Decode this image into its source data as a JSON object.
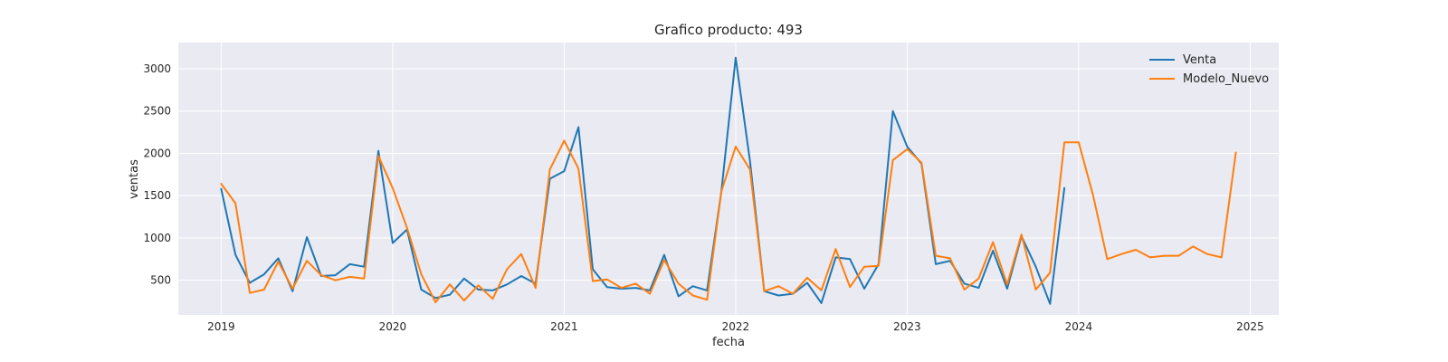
{
  "chart_data": {
    "type": "line",
    "title": "Grafico producto: 493",
    "xlabel": "fecha",
    "ylabel": "ventas",
    "x_ticks": [
      "2019",
      "2020",
      "2021",
      "2022",
      "2023",
      "2024",
      "2025"
    ],
    "y_ticks": [
      500,
      1000,
      1500,
      2000,
      2500,
      3000
    ],
    "xlim": [
      "2018-10-01",
      "2025-03-01"
    ],
    "ylim": [
      90,
      3310
    ],
    "grid": true,
    "background": "#eaeaf2",
    "legend_position": "top-right",
    "series": [
      {
        "name": "Venta",
        "color": "#1f77b4",
        "x": [
          "2019-01",
          "2019-02",
          "2019-03",
          "2019-04",
          "2019-05",
          "2019-06",
          "2019-07",
          "2019-08",
          "2019-09",
          "2019-10",
          "2019-11",
          "2019-12",
          "2020-01",
          "2020-02",
          "2020-03",
          "2020-04",
          "2020-05",
          "2020-06",
          "2020-07",
          "2020-08",
          "2020-09",
          "2020-10",
          "2020-11",
          "2020-12",
          "2021-01",
          "2021-02",
          "2021-03",
          "2021-04",
          "2021-05",
          "2021-06",
          "2021-07",
          "2021-08",
          "2021-09",
          "2021-10",
          "2021-11",
          "2021-12",
          "2022-01",
          "2022-02",
          "2022-03",
          "2022-04",
          "2022-05",
          "2022-06",
          "2022-07",
          "2022-08",
          "2022-09",
          "2022-10",
          "2022-11",
          "2022-12",
          "2023-01",
          "2023-02",
          "2023-03",
          "2023-04",
          "2023-05",
          "2023-06",
          "2023-07",
          "2023-08",
          "2023-09",
          "2023-10",
          "2023-11",
          "2023-12"
        ],
        "y": [
          1580,
          800,
          470,
          570,
          760,
          370,
          1010,
          550,
          560,
          690,
          660,
          2030,
          940,
          1100,
          390,
          290,
          330,
          520,
          390,
          380,
          450,
          550,
          460,
          1700,
          1790,
          2310,
          630,
          420,
          400,
          410,
          380,
          800,
          310,
          430,
          380,
          1550,
          3130,
          1910,
          370,
          320,
          340,
          470,
          230,
          770,
          750,
          400,
          690,
          2500,
          2080,
          1880,
          690,
          730,
          460,
          410,
          850,
          400,
          1020,
          660,
          220,
          1590
        ]
      },
      {
        "name": "Modelo_Nuevo",
        "color": "#ff7f0e",
        "x": [
          "2019-01",
          "2019-02",
          "2019-03",
          "2019-04",
          "2019-05",
          "2019-06",
          "2019-07",
          "2019-08",
          "2019-09",
          "2019-10",
          "2019-11",
          "2019-12",
          "2020-01",
          "2020-02",
          "2020-03",
          "2020-04",
          "2020-05",
          "2020-06",
          "2020-07",
          "2020-08",
          "2020-09",
          "2020-10",
          "2020-11",
          "2020-12",
          "2021-01",
          "2021-02",
          "2021-03",
          "2021-04",
          "2021-05",
          "2021-06",
          "2021-07",
          "2021-08",
          "2021-09",
          "2021-10",
          "2021-11",
          "2021-12",
          "2022-01",
          "2022-02",
          "2022-03",
          "2022-04",
          "2022-05",
          "2022-06",
          "2022-07",
          "2022-08",
          "2022-09",
          "2022-10",
          "2022-11",
          "2022-12",
          "2023-01",
          "2023-02",
          "2023-03",
          "2023-04",
          "2023-05",
          "2023-06",
          "2023-07",
          "2023-08",
          "2023-09",
          "2023-10",
          "2023-11",
          "2023-12",
          "2024-01",
          "2024-02",
          "2024-03",
          "2024-04",
          "2024-05",
          "2024-06",
          "2024-07",
          "2024-08",
          "2024-09",
          "2024-10",
          "2024-11",
          "2024-12"
        ],
        "y": [
          1640,
          1410,
          350,
          390,
          720,
          400,
          730,
          560,
          500,
          540,
          520,
          1970,
          1590,
          1120,
          570,
          240,
          450,
          260,
          440,
          280,
          630,
          810,
          410,
          1810,
          2150,
          1820,
          490,
          510,
          410,
          460,
          340,
          740,
          460,
          320,
          270,
          1550,
          2080,
          1810,
          370,
          430,
          340,
          530,
          380,
          870,
          420,
          660,
          670,
          1920,
          2050,
          1890,
          790,
          760,
          390,
          520,
          950,
          450,
          1040,
          390,
          590,
          2130,
          2130,
          1510,
          750,
          810,
          860,
          770,
          790,
          790,
          900,
          810,
          770,
          2010
        ]
      }
    ]
  }
}
